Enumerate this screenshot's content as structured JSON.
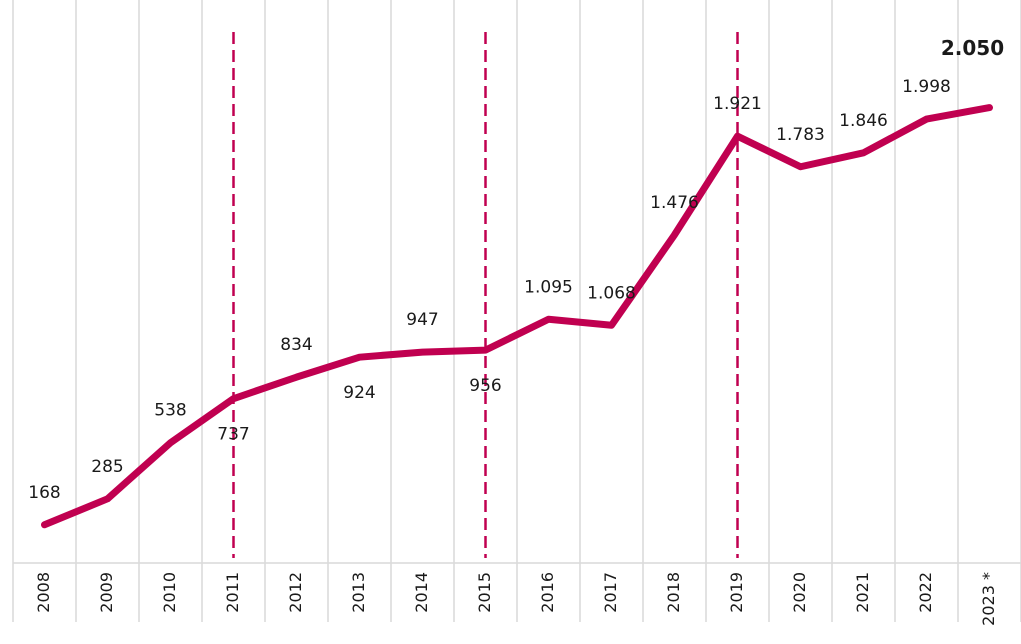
{
  "chart_data": {
    "type": "line",
    "categories": [
      "2008",
      "2009",
      "2010",
      "2011",
      "2012",
      "2013",
      "2014",
      "2015",
      "2016",
      "2017",
      "2018",
      "2019",
      "2020",
      "2021",
      "2022",
      "2023 *"
    ],
    "series": [
      {
        "color": "#c00050",
        "values": [
          168,
          285,
          538,
          737,
          834,
          924,
          947,
          956,
          1095,
          1068,
          1476,
          1921,
          1783,
          1846,
          1998,
          2050
        ],
        "value_labels": [
          "168",
          "285",
          "538",
          "737",
          "834",
          "924",
          "947",
          "956",
          "1.095",
          "1.068",
          "1.476",
          "1.921",
          "1.783",
          "1.846",
          "1.998",
          "2.050"
        ]
      }
    ],
    "ylim": [
      0,
      2400
    ],
    "reference_lines": [
      "2011",
      "2015",
      "2019"
    ]
  }
}
